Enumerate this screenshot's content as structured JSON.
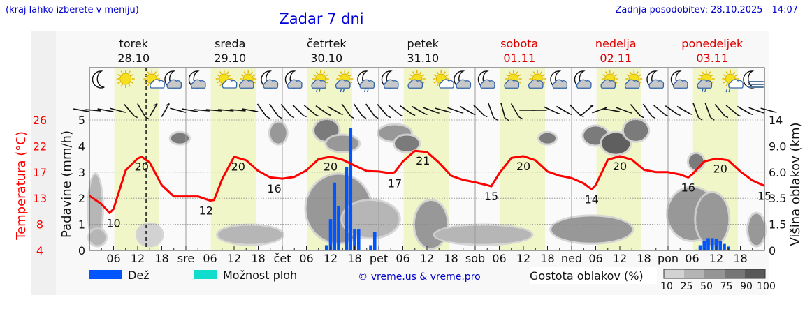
{
  "header": {
    "hint": "(kraj lahko izberete v meniju)",
    "title": "Zadar 7 dni",
    "updated": "Zadnja posodobitev: 28.10.2025 - 14:07"
  },
  "colors": {
    "temp": "#ff0000",
    "rain": "#0055ff",
    "showers": "#11ddcc",
    "day_band": "#f0f6c8",
    "weekend": "#dd0000",
    "link": "#0000cc"
  },
  "chart_data": {
    "type": "line",
    "title": "Zadar 7 dni",
    "days": [
      {
        "name": "torek",
        "date": "28.10",
        "weekend": false
      },
      {
        "name": "sreda",
        "date": "29.10",
        "weekend": false
      },
      {
        "name": "četrtek",
        "date": "30.10",
        "weekend": false
      },
      {
        "name": "petek",
        "date": "31.10",
        "weekend": false
      },
      {
        "name": "sobota",
        "date": "01.11",
        "weekend": true
      },
      {
        "name": "nedelja",
        "date": "02.11",
        "weekend": true
      },
      {
        "name": "ponedeljek",
        "date": "03.11",
        "weekend": true
      }
    ],
    "x_tick_labels": [
      "06",
      "12",
      "18",
      "sre",
      "06",
      "12",
      "18",
      "čet",
      "06",
      "12",
      "18",
      "pet",
      "06",
      "12",
      "18",
      "sob",
      "06",
      "12",
      "18",
      "ned",
      "06",
      "12",
      "18",
      "pon",
      "06",
      "12",
      "18"
    ],
    "x_range_hours": [
      0,
      168
    ],
    "current_time_hour": 14.1,
    "daylight_hours": [
      6.2,
      17.4
    ],
    "axes": {
      "temp_label": "Temperatura (°C)",
      "temp_ticks": [
        "4",
        "8",
        "13",
        "17",
        "22",
        "26"
      ],
      "temp_range": [
        4,
        26
      ],
      "precip_label": "Padavine (mm/h)",
      "precip_ticks": [
        "0",
        "1",
        "2",
        "3",
        "4",
        "5"
      ],
      "precip_range": [
        0,
        5
      ],
      "cloud_label": "Višina oblakov (km)",
      "cloud_ticks": [
        "0",
        "1.5",
        "3.5",
        "6.0",
        "9.0",
        "14"
      ]
    },
    "temperature": {
      "hours": [
        0,
        3,
        5,
        6,
        9,
        12,
        13,
        15,
        18,
        21,
        24,
        27,
        30,
        31,
        33,
        36,
        39,
        42,
        45,
        48,
        51,
        54,
        57,
        60,
        63,
        66,
        69,
        72,
        75,
        76,
        78,
        81,
        84,
        87,
        90,
        93,
        96,
        99,
        100,
        102,
        105,
        108,
        111,
        114,
        117,
        120,
        123,
        125,
        126,
        129,
        132,
        135,
        138,
        141,
        144,
        147,
        149,
        150,
        153,
        156,
        159,
        162,
        165,
        168
      ],
      "values": [
        13.2,
        11.8,
        10.3,
        11,
        17.5,
        19.5,
        19.8,
        18.8,
        15,
        13.1,
        13.1,
        13.1,
        12.4,
        12.5,
        16,
        19.8,
        19.2,
        17.4,
        16.3,
        16.1,
        16.4,
        17.5,
        19.4,
        19.8,
        19.3,
        18.3,
        17.4,
        17.3,
        17.0,
        17.2,
        19,
        20.8,
        20.6,
        18.8,
        16.6,
        15.9,
        15.5,
        15.0,
        14.8,
        17,
        19.6,
        19.9,
        19.2,
        17.3,
        16.6,
        16.2,
        15.3,
        14.3,
        15,
        19.3,
        19.9,
        19.3,
        17.6,
        17.2,
        17.2,
        16.8,
        16.3,
        16.8,
        19,
        19.5,
        19.2,
        17.3,
        15.8,
        14.9
      ]
    },
    "temp_labels": [
      {
        "hour": 6,
        "temp": 10.3,
        "text": "10"
      },
      {
        "hour": 13,
        "temp": 19.8,
        "text": "20"
      },
      {
        "hour": 29,
        "temp": 12.4,
        "text": "12"
      },
      {
        "hour": 37,
        "temp": 19.8,
        "text": "20"
      },
      {
        "hour": 46,
        "temp": 16.1,
        "text": "16"
      },
      {
        "hour": 60,
        "temp": 19.8,
        "text": "20"
      },
      {
        "hour": 76,
        "temp": 17.0,
        "text": "17"
      },
      {
        "hour": 83,
        "temp": 20.8,
        "text": "21"
      },
      {
        "hour": 100,
        "temp": 14.8,
        "text": "15"
      },
      {
        "hour": 108,
        "temp": 19.9,
        "text": "20"
      },
      {
        "hour": 125,
        "temp": 14.3,
        "text": "14"
      },
      {
        "hour": 132,
        "temp": 19.9,
        "text": "20"
      },
      {
        "hour": 149,
        "temp": 16.3,
        "text": "16"
      },
      {
        "hour": 157,
        "temp": 19.5,
        "text": "20"
      },
      {
        "hour": 168,
        "temp": 14.9,
        "text": "15"
      }
    ],
    "rain": {
      "hours": [
        59,
        60,
        61,
        62,
        64,
        65,
        66,
        67,
        70,
        71,
        151,
        152,
        153,
        154,
        155,
        156,
        157,
        158,
        159
      ],
      "values": [
        0.2,
        1.2,
        2.6,
        1.7,
        3.2,
        4.7,
        0.8,
        0.8,
        0.2,
        0.7,
        0.03,
        0.2,
        0.35,
        0.47,
        0.47,
        0.43,
        0.35,
        0.25,
        0.15
      ]
    },
    "clouds": [
      {
        "hour": 1.5,
        "level": 1.6,
        "span_h": 1.6,
        "span_l": 1.3,
        "density": 25
      },
      {
        "hour": 22.5,
        "level": 4.3,
        "span_h": 2.2,
        "span_l": 0.2,
        "density": 75
      },
      {
        "hour": 2,
        "level": 0.5,
        "span_h": 2,
        "span_l": 0.3,
        "density": 25
      },
      {
        "hour": 15,
        "level": 0.6,
        "span_h": 3,
        "span_l": 0.4,
        "density": 10
      },
      {
        "hour": 40,
        "level": 0.6,
        "span_h": 8,
        "span_l": 0.35,
        "density": 25
      },
      {
        "hour": 47,
        "level": 4.5,
        "span_h": 2,
        "span_l": 0.4,
        "density": 50
      },
      {
        "hour": 59,
        "level": 4.6,
        "span_h": 3,
        "span_l": 0.4,
        "density": 75
      },
      {
        "hour": 63,
        "level": 4.1,
        "span_h": 4,
        "span_l": 0.3,
        "density": 50
      },
      {
        "hour": 62,
        "level": 1.6,
        "span_h": 8,
        "span_l": 1.3,
        "density": 50
      },
      {
        "hour": 70,
        "level": 1.2,
        "span_h": 7,
        "span_l": 0.7,
        "density": 25
      },
      {
        "hour": 76,
        "level": 4.5,
        "span_h": 4,
        "span_l": 0.3,
        "density": 50
      },
      {
        "hour": 79,
        "level": 4.1,
        "span_h": 3,
        "span_l": 0.3,
        "density": 75
      },
      {
        "hour": 85,
        "level": 1.0,
        "span_h": 4,
        "span_l": 0.9,
        "density": 50
      },
      {
        "hour": 98,
        "level": 0.6,
        "span_h": 12,
        "span_l": 0.35,
        "density": 25
      },
      {
        "hour": 114,
        "level": 4.3,
        "span_h": 2,
        "span_l": 0.2,
        "density": 75
      },
      {
        "hour": 126,
        "level": 4.4,
        "span_h": 3,
        "span_l": 0.35,
        "density": 75
      },
      {
        "hour": 131,
        "level": 4.1,
        "span_h": 3.5,
        "span_l": 0.4,
        "density": 90
      },
      {
        "hour": 136,
        "level": 4.6,
        "span_h": 3,
        "span_l": 0.4,
        "density": 75
      },
      {
        "hour": 125,
        "level": 0.8,
        "span_h": 10,
        "span_l": 0.5,
        "density": 50
      },
      {
        "hour": 150,
        "level": 1.4,
        "span_h": 6,
        "span_l": 1.0,
        "density": 50
      },
      {
        "hour": 155,
        "level": 1.2,
        "span_h": 4,
        "span_l": 1.0,
        "density": 50
      },
      {
        "hour": 151,
        "level": 3.4,
        "span_h": 1.8,
        "span_l": 0.3,
        "density": 75
      },
      {
        "hour": 166,
        "level": 0.8,
        "span_h": 2,
        "span_l": 0.6,
        "density": 50
      }
    ],
    "weather_icons": [
      "moon",
      "sun",
      "sun-small-cloud",
      "moon-cloud",
      "moon-cloud",
      "sun-small-cloud",
      "sun-cloud",
      "moon-cloud",
      "moon-cloud",
      "sun-cloud-rain",
      "sun-cloud-rain",
      "moon-cloud-rain",
      "moon-cloud",
      "sun-cloud",
      "sun-small-cloud",
      "moon-cloud",
      "moon-cloud",
      "sun-cloud",
      "sun-cloud",
      "moon-cloud",
      "moon-cloud",
      "sun-cloud",
      "sun-cloud",
      "moon-cloud",
      "moon-cloud",
      "sun-cloud-rain",
      "sun-small-cloud-rain",
      "moon-fog"
    ],
    "wind_shaft_angles_deg": [
      10,
      5,
      10,
      15,
      50,
      60,
      -60,
      -60,
      15,
      10,
      5,
      5,
      5,
      5,
      10,
      55,
      55,
      50,
      45,
      40,
      35,
      30,
      55,
      55,
      55,
      50,
      40,
      35,
      30,
      20,
      15,
      20,
      30,
      45,
      70,
      75,
      60,
      0,
      0,
      25,
      30,
      45,
      -40,
      -20,
      10,
      20,
      50,
      55,
      40,
      35,
      30,
      70,
      70,
      50,
      40,
      30,
      20,
      15,
      5,
      10,
      -40,
      -50,
      5,
      15,
      10
    ],
    "legend": {
      "rain_label": "Dež",
      "showers_label": "Možnost ploh",
      "copyright": "© vreme.us & vreme.pro",
      "cloud_density_label": "Gostota oblakov (%)",
      "density_ticks": [
        "10",
        "25",
        "50",
        "75",
        "90",
        "100"
      ],
      "density_colors": [
        "#d2d2d2",
        "#b4b4b4",
        "#959595",
        "#767676",
        "#585858"
      ]
    }
  }
}
